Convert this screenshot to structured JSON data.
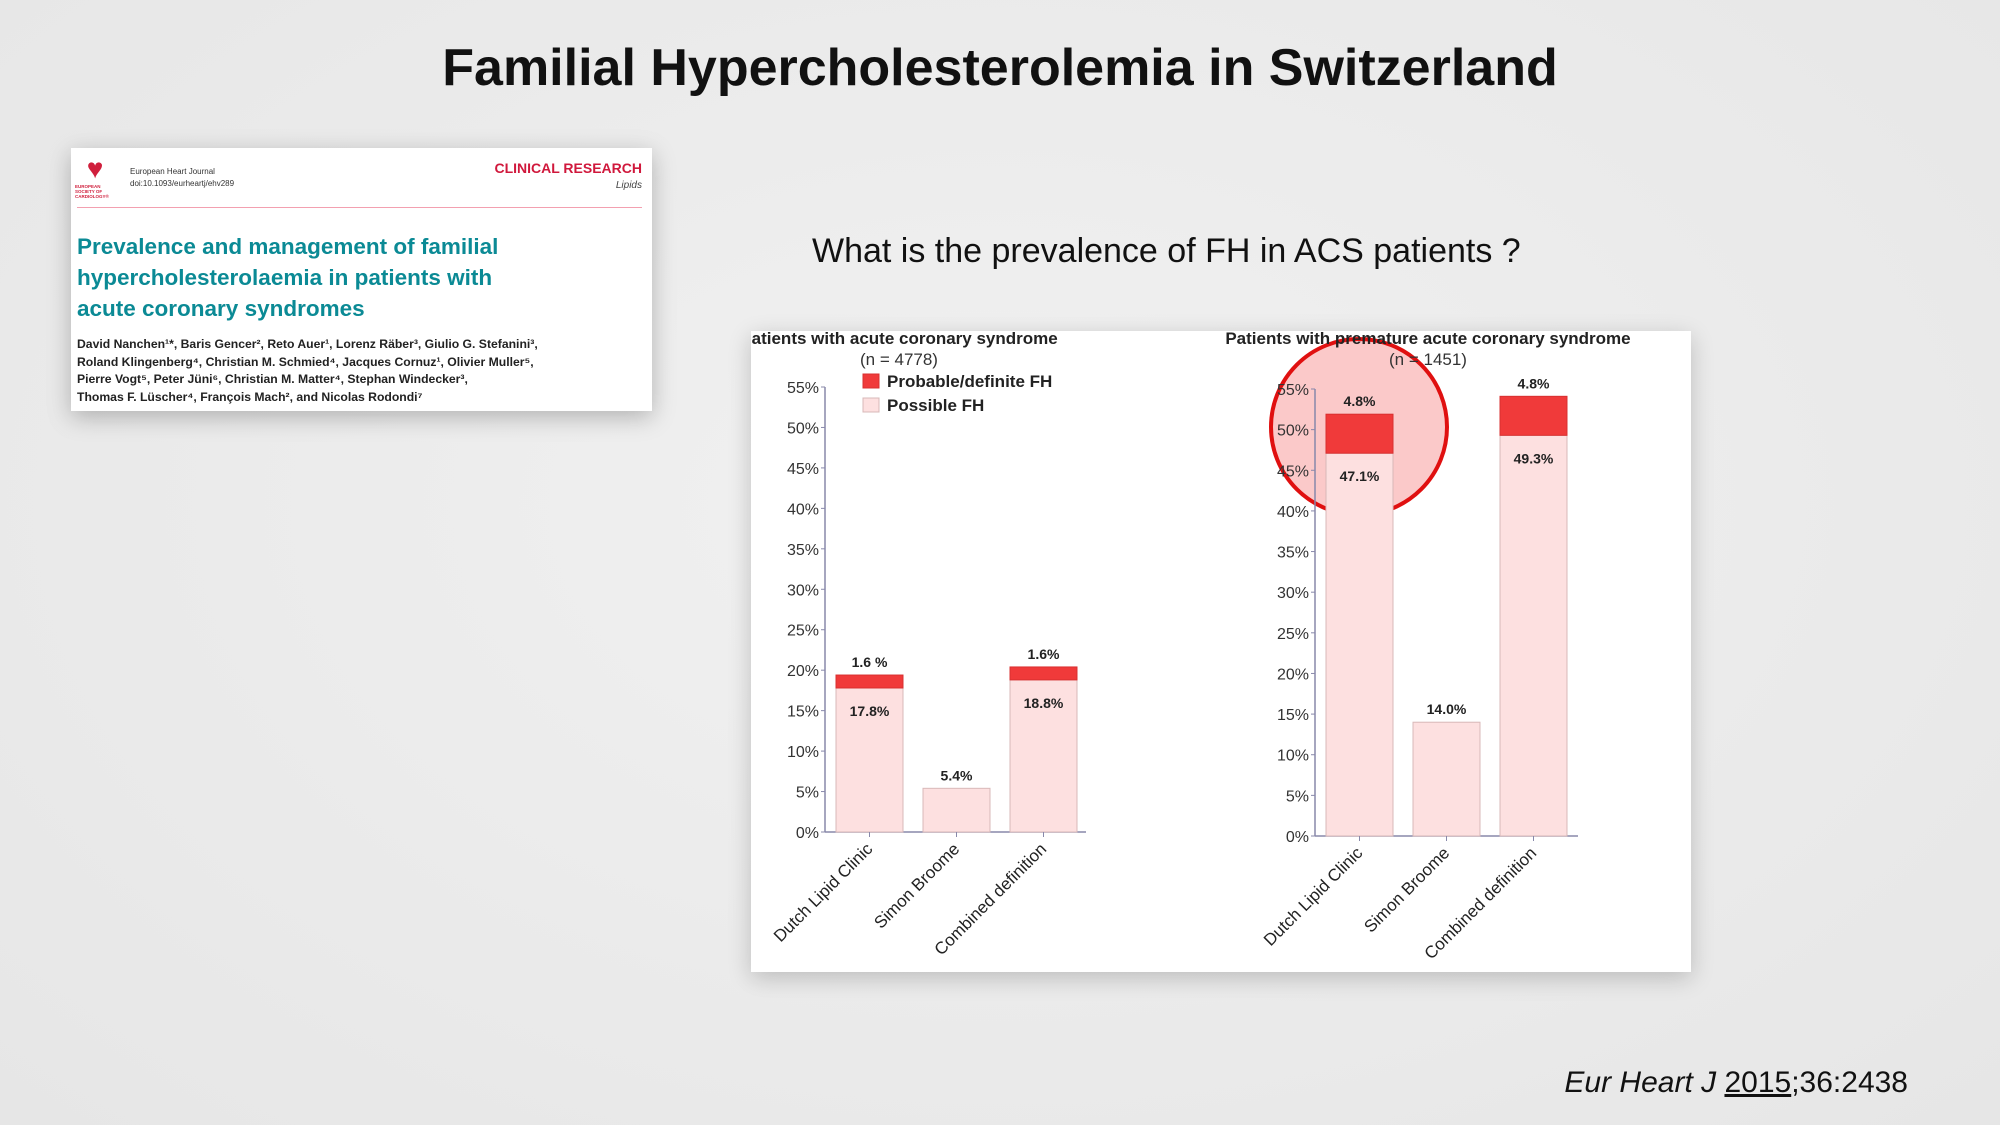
{
  "slide": {
    "title": "Familial Hypercholesterolemia in Switzerland",
    "question": "What is the prevalence of FH in ACS patients ?",
    "citation": {
      "journal": "Eur Heart J",
      "year": "2015",
      "rest": ";36:2438"
    }
  },
  "paper": {
    "logo_text": "EUROPEAN SOCIETY OF CARDIOLOGY®",
    "journal": "European Heart Journal",
    "doi": "doi:10.1093/eurheartj/ehv289",
    "section": "CLINICAL RESEARCH",
    "subsection": "Lipids",
    "title_lines": [
      "Prevalence and management of familial",
      "hypercholesterolaemia in patients with",
      "acute coronary syndromes"
    ],
    "authors": [
      "David Nanchen¹*, Baris Gencer², Reto Auer¹, Lorenz Räber³, Giulio G. Stefanini³,",
      "Roland Klingenberg⁴, Christian M. Schmied⁴, Jacques Cornuz¹, Olivier Muller⁵,",
      "Pierre Vogt⁵, Peter Jüni⁶, Christian M. Matter⁴, Stephan Windecker³,",
      "Thomas F. Lüscher⁴, François Mach², and Nicolas Rodondi⁷"
    ]
  },
  "chart_data": [
    {
      "type": "bar",
      "stacked": true,
      "title": "Patients with acute coronary syndrome",
      "subtitle": "(n = 4778)",
      "ylim": [
        0,
        55
      ],
      "yticks": [
        "0%",
        "5%",
        "10%",
        "15%",
        "20%",
        "25%",
        "30%",
        "35%",
        "40%",
        "45%",
        "50%",
        "55%"
      ],
      "categories": [
        "Dutch Lipid Clinic",
        "Simon Broome",
        "Combined definition"
      ],
      "series": [
        {
          "name": "Possible FH",
          "color": "#fde0e0",
          "values": [
            17.8,
            5.4,
            18.8
          ],
          "labels": [
            "17.8%",
            "5.4%",
            "18.8%"
          ]
        },
        {
          "name": "Probable/definite FH",
          "color": "#f03a3a",
          "values": [
            1.6,
            0,
            1.6
          ],
          "labels": [
            "1.6 %",
            "",
            "1.6%"
          ]
        }
      ],
      "legend": "top-right"
    },
    {
      "type": "bar",
      "stacked": true,
      "title": "Patients with premature acute coronary syndrome",
      "subtitle": "(n = 1451)",
      "ylim": [
        0,
        55
      ],
      "yticks": [
        "0%",
        "5%",
        "10%",
        "15%",
        "20%",
        "25%",
        "30%",
        "35%",
        "40%",
        "45%",
        "50%",
        "55%"
      ],
      "categories": [
        "Dutch Lipid Clinic",
        "Simon Broome",
        "Combined definition"
      ],
      "series": [
        {
          "name": "Possible FH",
          "color": "#fde0e0",
          "values": [
            47.1,
            14.0,
            49.3
          ],
          "labels": [
            "47.1%",
            "14.0%",
            "49.3%"
          ]
        },
        {
          "name": "Probable/definite FH",
          "color": "#f03a3a",
          "values": [
            4.8,
            0,
            4.8
          ],
          "labels": [
            "4.8%",
            "",
            "4.8%"
          ]
        }
      ],
      "highlight": "Dutch Lipid Clinic"
    }
  ]
}
